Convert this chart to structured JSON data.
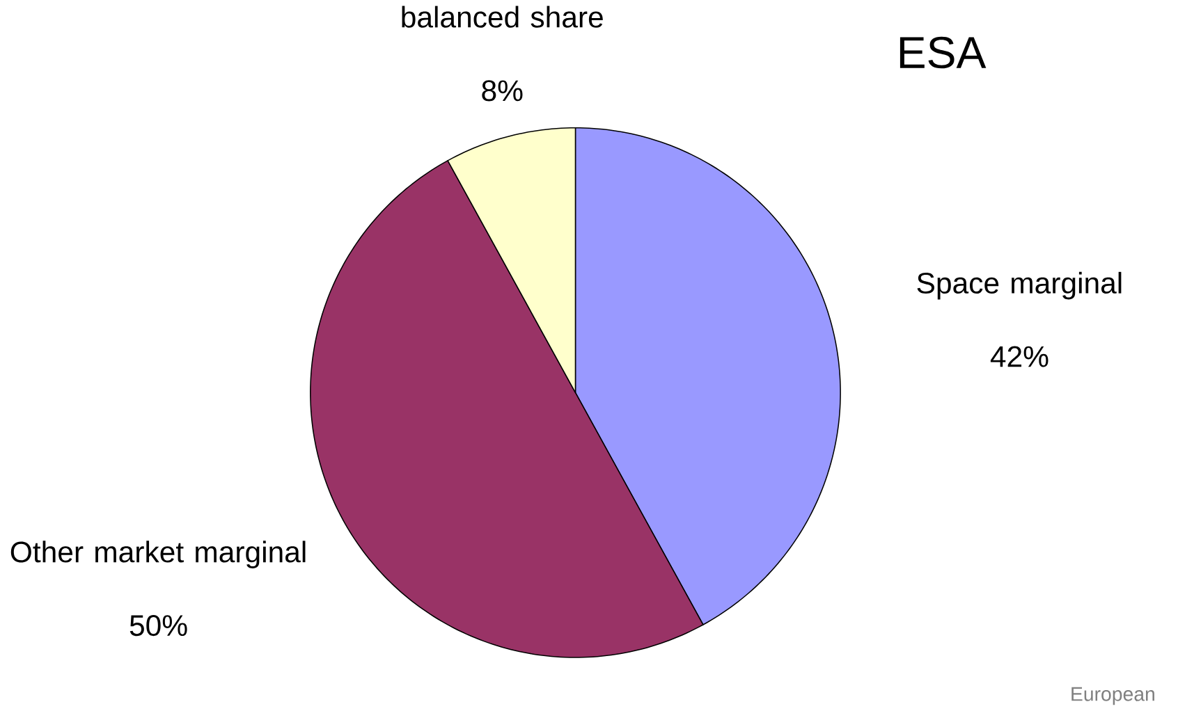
{
  "chart_data": {
    "type": "pie",
    "title": "ESA",
    "categories": [
      "Space marginal",
      "Other market marginal",
      "balanced share"
    ],
    "values": [
      42,
      50,
      8
    ],
    "value_labels": [
      "42%",
      "50%",
      "8%"
    ],
    "colors": [
      "#9999ff",
      "#993366",
      "#ffffcc"
    ],
    "annotations": [
      "European"
    ]
  }
}
